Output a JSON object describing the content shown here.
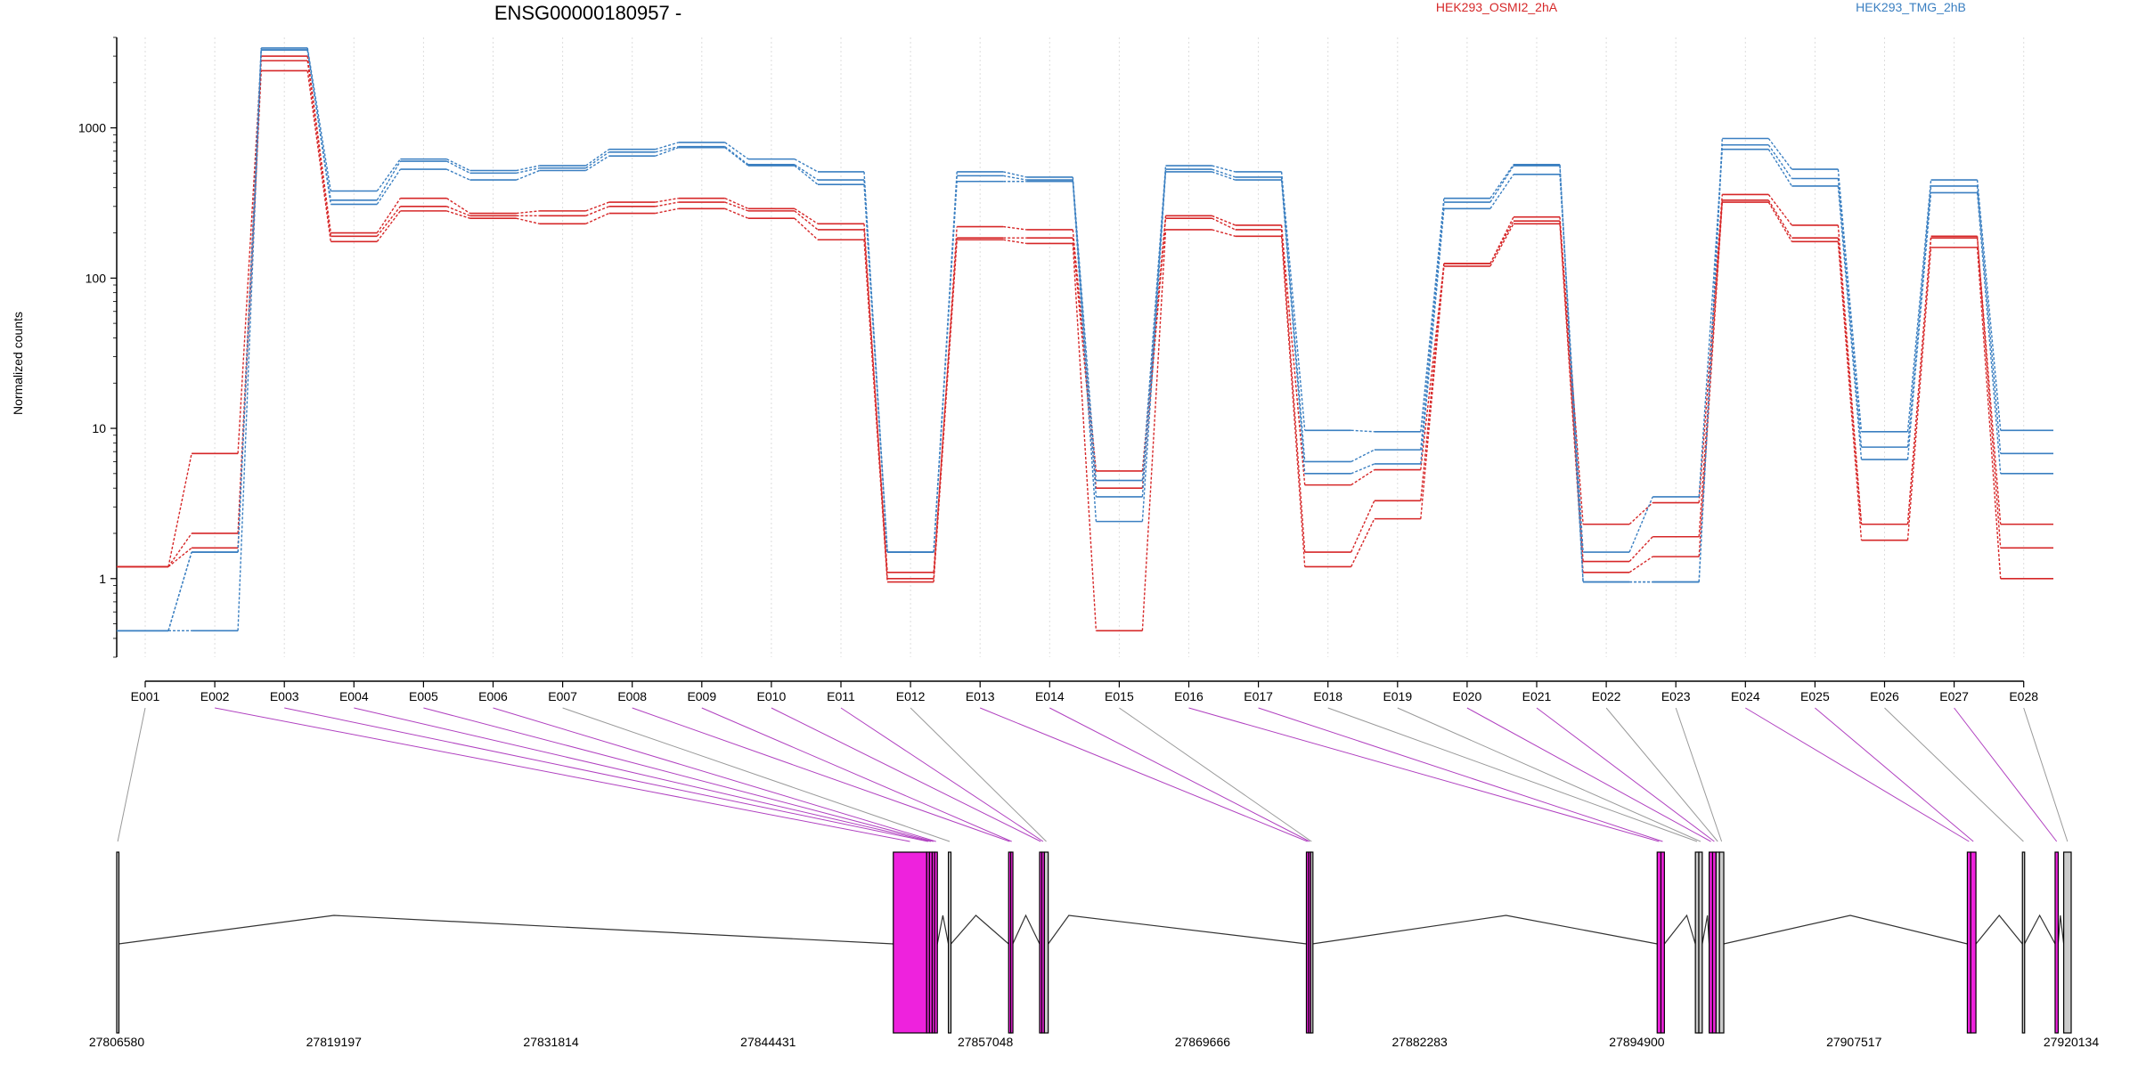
{
  "chart_data": {
    "type": "line",
    "title": "ENSG00000180957 -",
    "ylabel": "Normalized counts",
    "xlabel": "",
    "yscale": "log",
    "ylim": [
      0.3,
      4000
    ],
    "y_ticks": [
      1,
      10,
      100,
      1000
    ],
    "y_tick_labels": [
      "1",
      "10",
      "100",
      "1000"
    ],
    "grid": "vertical dotted lines at each exon",
    "legend_placement": "top",
    "colors": {
      "HEK293_OSMI2_2hA": "#d62728",
      "HEK293_TMG_2hB": "#3a7fc1",
      "connector_highlight": "#b040c0",
      "connector_plain": "#999999",
      "exon_highlight": "#ee22dd",
      "exon_plain": "#cccccc"
    },
    "categories": [
      "E001",
      "E002",
      "E003",
      "E004",
      "E005",
      "E006",
      "E007",
      "E008",
      "E009",
      "E010",
      "E011",
      "E012",
      "E013",
      "E014",
      "E015",
      "E016",
      "E017",
      "E018",
      "E019",
      "E020",
      "E021",
      "E022",
      "E023",
      "E024",
      "E025",
      "E026",
      "E027",
      "E028"
    ],
    "series": [
      {
        "name": "HEK293_OSMI2_2hA",
        "color": "#d62728",
        "values": [
          1.2,
          1.6,
          2400,
          175,
          280,
          250,
          230,
          270,
          290,
          250,
          180,
          0.95,
          180,
          170,
          0.45,
          210,
          190,
          1.2,
          2.5,
          120,
          230,
          1.1,
          1.4,
          320,
          175,
          1.8,
          160,
          1.0
        ]
      },
      {
        "name": "HEK293_OSMI2_2hA",
        "color": "#d62728",
        "values": [
          1.2,
          2.0,
          2800,
          190,
          300,
          260,
          260,
          300,
          320,
          280,
          210,
          1.1,
          185,
          185,
          4.0,
          250,
          210,
          1.5,
          3.3,
          125,
          240,
          1.3,
          1.9,
          330,
          185,
          2.3,
          190,
          1.6
        ]
      },
      {
        "name": "HEK293_OSMI2_2hA",
        "color": "#d62728",
        "values": [
          1.2,
          6.8,
          3000,
          200,
          340,
          270,
          280,
          320,
          340,
          290,
          230,
          1.0,
          220,
          210,
          5.2,
          260,
          225,
          4.2,
          5.3,
          125,
          255,
          2.3,
          3.2,
          360,
          225,
          2.3,
          185,
          2.3
        ]
      },
      {
        "name": "HEK293_TMG_2hB",
        "color": "#3a7fc1",
        "values": [
          0.45,
          0.45,
          3300,
          310,
          530,
          450,
          520,
          650,
          740,
          560,
          420,
          1.5,
          440,
          440,
          2.4,
          510,
          450,
          5.0,
          5.8,
          290,
          490,
          1.5,
          3.5,
          720,
          410,
          6.2,
          370,
          5.0
        ]
      },
      {
        "name": "HEK293_TMG_2hB",
        "color": "#3a7fc1",
        "values": [
          0.45,
          1.5,
          3300,
          330,
          600,
          500,
          540,
          690,
          750,
          570,
          450,
          1.5,
          480,
          450,
          3.5,
          530,
          470,
          6.0,
          7.2,
          320,
          560,
          0.95,
          0.95,
          770,
          460,
          7.5,
          410,
          6.8
        ]
      },
      {
        "name": "HEK293_TMG_2hB",
        "color": "#3a7fc1",
        "values": [
          0.45,
          1.5,
          3400,
          380,
          620,
          520,
          560,
          720,
          800,
          620,
          510,
          1.5,
          510,
          470,
          4.5,
          560,
          510,
          9.7,
          9.5,
          340,
          570,
          0.95,
          0.95,
          850,
          530,
          9.5,
          450,
          9.7
        ]
      }
    ],
    "legend": [
      {
        "label": "HEK293_OSMI2_2hA",
        "color": "#d62728"
      },
      {
        "label": "HEK293_TMG_2hB",
        "color": "#3a7fc1"
      }
    ],
    "gene_model": {
      "start": 27806580,
      "end": 27920134,
      "axis_labels": [
        "27806580",
        "27819197",
        "27831814",
        "27844431",
        "27857048",
        "27869666",
        "27882283",
        "27894900",
        "27907517",
        "27920134"
      ],
      "exons": [
        {
          "id": "E001",
          "start": 27806580,
          "end": 27806700,
          "highlight": false
        },
        {
          "id": "E002",
          "start": 27851700,
          "end": 27853640,
          "highlight": true
        },
        {
          "id": "E003",
          "start": 27853640,
          "end": 27853800,
          "highlight": true
        },
        {
          "id": "E004",
          "start": 27853800,
          "end": 27853960,
          "highlight": true
        },
        {
          "id": "E005",
          "start": 27853960,
          "end": 27854100,
          "highlight": true
        },
        {
          "id": "E006",
          "start": 27854100,
          "end": 27854260,
          "highlight": true
        },
        {
          "id": "E007",
          "start": 27854900,
          "end": 27855050,
          "highlight": false
        },
        {
          "id": "E008",
          "start": 27858400,
          "end": 27858520,
          "highlight": true
        },
        {
          "id": "E009",
          "start": 27858520,
          "end": 27858640,
          "highlight": true
        },
        {
          "id": "E010",
          "start": 27860200,
          "end": 27860330,
          "highlight": true
        },
        {
          "id": "E011",
          "start": 27860330,
          "end": 27860480,
          "highlight": true
        },
        {
          "id": "E012",
          "start": 27860480,
          "end": 27860700,
          "highlight": false
        },
        {
          "id": "E013",
          "start": 27875700,
          "end": 27875830,
          "highlight": true
        },
        {
          "id": "E014",
          "start": 27875830,
          "end": 27875950,
          "highlight": true
        },
        {
          "id": "E015",
          "start": 27875950,
          "end": 27876050,
          "highlight": false
        },
        {
          "id": "E016",
          "start": 27896080,
          "end": 27896300,
          "highlight": true
        },
        {
          "id": "E017",
          "start": 27896300,
          "end": 27896500,
          "highlight": true
        },
        {
          "id": "E018",
          "start": 27898300,
          "end": 27898500,
          "highlight": false
        },
        {
          "id": "E019",
          "start": 27898500,
          "end": 27898700,
          "highlight": false
        },
        {
          "id": "E020",
          "start": 27899100,
          "end": 27899300,
          "highlight": true
        },
        {
          "id": "E021",
          "start": 27899300,
          "end": 27899500,
          "highlight": true
        },
        {
          "id": "E022",
          "start": 27899500,
          "end": 27899700,
          "highlight": false
        },
        {
          "id": "E023",
          "start": 27899700,
          "end": 27899950,
          "highlight": false
        },
        {
          "id": "E024",
          "start": 27914100,
          "end": 27914300,
          "highlight": true
        },
        {
          "id": "E025",
          "start": 27914300,
          "end": 27914600,
          "highlight": true
        },
        {
          "id": "E026",
          "start": 27917300,
          "end": 27917420,
          "highlight": false
        },
        {
          "id": "E027",
          "start": 27919200,
          "end": 27919380,
          "highlight": true
        },
        {
          "id": "E028",
          "start": 27919700,
          "end": 27920134,
          "highlight": false
        }
      ],
      "junction_peaks": [
        27819197,
        27856500,
        27859400,
        27861900,
        27867500,
        27887300,
        27897800,
        27899000,
        27907300,
        27918300,
        27919500
      ]
    }
  }
}
